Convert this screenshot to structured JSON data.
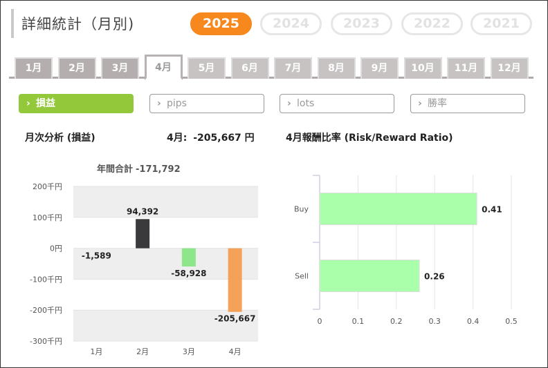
{
  "page": {
    "title": "詳細統計（月別)"
  },
  "years": [
    {
      "label": "2025",
      "active": true
    },
    {
      "label": "2024",
      "active": false
    },
    {
      "label": "2023",
      "active": false
    },
    {
      "label": "2022",
      "active": false
    },
    {
      "label": "2021",
      "active": false
    }
  ],
  "months": [
    "1月",
    "2月",
    "3月",
    "4月",
    "5月",
    "6月",
    "7月",
    "8月",
    "9月",
    "10月",
    "11月",
    "12月"
  ],
  "selected_month": "4月",
  "metric_tabs": [
    {
      "label": "損益",
      "active": true
    },
    {
      "label": "pips",
      "active": false
    },
    {
      "label": "lots",
      "active": false
    },
    {
      "label": "勝率",
      "active": false
    }
  ],
  "summary": {
    "monthly_title": "月次分析 (損益)",
    "month_label": "4月:",
    "month_value": "-205,667 円",
    "rr_title": "4月報酬比率 (Risk/Reward Ratio)",
    "annual_label": "年間合計",
    "annual_value": "-171,792"
  },
  "colors": {
    "accent": "#f7881d",
    "tab_active_green": "#92c83a",
    "bar_dark": "#3a3a3d",
    "bar_green": "#8ee68a",
    "bar_orange": "#f4a259",
    "rr_green": "#aaffaa"
  },
  "chart_data": [
    {
      "type": "bar",
      "categories": [
        "1月",
        "2月",
        "3月",
        "4月"
      ],
      "values": [
        -1589,
        94392,
        -58928,
        -205667
      ],
      "data_labels": [
        "-1,589",
        "94,392",
        "-58,928",
        "-205,667"
      ],
      "bar_colors": [
        "#eeeeee",
        "#3a3a3d",
        "#8ee68a",
        "#f4a259"
      ],
      "title": "年間合計 -171,792",
      "y_ticks": [
        200000,
        100000,
        0,
        -100000,
        -200000,
        -300000
      ],
      "y_tick_labels": [
        "200千円",
        "100千円",
        "0円",
        "-100千円",
        "-200千円",
        "-300千円"
      ],
      "ylim": [
        -300000,
        200000
      ]
    },
    {
      "type": "bar",
      "orientation": "horizontal",
      "categories": [
        "Buy",
        "Sell"
      ],
      "values": [
        0.41,
        0.26
      ],
      "data_labels": [
        "0.41",
        "0.26"
      ],
      "x_ticks": [
        0,
        0.1,
        0.2,
        0.3,
        0.4,
        0.5
      ],
      "x_tick_labels": [
        "0",
        "0.1",
        "0.2",
        "0.3",
        "0.4",
        "0.5"
      ],
      "xlim": [
        0,
        0.5
      ],
      "grid": true
    }
  ]
}
